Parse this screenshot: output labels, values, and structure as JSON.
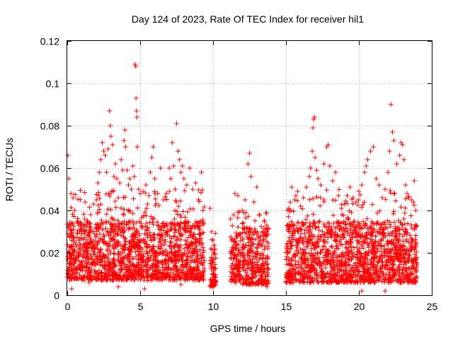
{
  "chart_data": {
    "type": "scatter",
    "title": "Day 124 of 2023, Rate Of TEC Index for receiver hil1",
    "xlabel": "GPS time / hours",
    "ylabel": "ROTI / TECUs",
    "xlim": [
      0,
      25
    ],
    "ylim": [
      0,
      0.12
    ],
    "x_ticks": [
      0,
      5,
      10,
      15,
      20,
      25
    ],
    "x_tick_labels": [
      "0",
      "5",
      "10",
      "15",
      "20",
      "25"
    ],
    "y_ticks": [
      0,
      0.02,
      0.04,
      0.06,
      0.08,
      0.1,
      0.12
    ],
    "y_tick_labels": [
      "0",
      "0.02",
      "0.04",
      "0.06",
      "0.08",
      "0.1",
      "0.12"
    ],
    "grid": true,
    "marker": "plus",
    "color": "#ff0000",
    "series": [
      {
        "name": "ROTI",
        "points": [
          [
            0.05,
            0.066
          ],
          [
            0.1,
            0.055
          ],
          [
            0.25,
            0.048
          ],
          [
            0.4,
            0.046
          ],
          [
            0.5,
            0.04
          ],
          [
            0.7,
            0.034
          ],
          [
            0.9,
            0.031
          ],
          [
            1.0,
            0.029
          ],
          [
            1.2,
            0.036
          ],
          [
            1.4,
            0.035
          ],
          [
            1.6,
            0.038
          ],
          [
            1.8,
            0.043
          ],
          [
            2.0,
            0.045
          ],
          [
            2.1,
            0.053
          ],
          [
            2.2,
            0.058
          ],
          [
            2.3,
            0.064
          ],
          [
            2.4,
            0.072
          ],
          [
            2.5,
            0.068
          ],
          [
            2.6,
            0.066
          ],
          [
            2.7,
            0.058
          ],
          [
            2.8,
            0.069
          ],
          [
            2.9,
            0.087
          ],
          [
            2.95,
            0.08
          ],
          [
            3.0,
            0.075
          ],
          [
            3.1,
            0.071
          ],
          [
            3.2,
            0.056
          ],
          [
            3.3,
            0.062
          ],
          [
            3.4,
            0.055
          ],
          [
            3.5,
            0.046
          ],
          [
            3.6,
            0.053
          ],
          [
            3.7,
            0.064
          ],
          [
            3.8,
            0.059
          ],
          [
            3.9,
            0.073
          ],
          [
            3.95,
            0.078
          ],
          [
            4.0,
            0.07
          ],
          [
            4.1,
            0.059
          ],
          [
            4.2,
            0.052
          ],
          [
            4.3,
            0.055
          ],
          [
            4.4,
            0.05
          ],
          [
            4.5,
            0.061
          ],
          [
            4.6,
            0.056
          ],
          [
            4.65,
            0.109
          ],
          [
            4.7,
            0.108
          ],
          [
            4.72,
            0.093
          ],
          [
            4.75,
            0.087
          ],
          [
            4.78,
            0.084
          ],
          [
            4.8,
            0.07
          ],
          [
            4.9,
            0.05
          ],
          [
            5.0,
            0.048
          ],
          [
            5.2,
            0.049
          ],
          [
            5.4,
            0.052
          ],
          [
            5.5,
            0.043
          ],
          [
            5.6,
            0.047
          ],
          [
            5.7,
            0.058
          ],
          [
            5.8,
            0.065
          ],
          [
            5.9,
            0.07
          ],
          [
            6.0,
            0.055
          ],
          [
            6.2,
            0.048
          ],
          [
            6.4,
            0.06
          ],
          [
            6.6,
            0.045
          ],
          [
            6.8,
            0.048
          ],
          [
            7.0,
            0.06
          ],
          [
            7.1,
            0.055
          ],
          [
            7.2,
            0.072
          ],
          [
            7.3,
            0.061
          ],
          [
            7.4,
            0.05
          ],
          [
            7.5,
            0.081
          ],
          [
            7.6,
            0.068
          ],
          [
            7.7,
            0.064
          ],
          [
            7.8,
            0.058
          ],
          [
            7.9,
            0.061
          ],
          [
            8.0,
            0.055
          ],
          [
            8.2,
            0.052
          ],
          [
            8.4,
            0.06
          ],
          [
            8.6,
            0.05
          ],
          [
            8.8,
            0.053
          ],
          [
            9.0,
            0.045
          ],
          [
            9.2,
            0.058
          ],
          [
            9.3,
            0.04
          ],
          [
            9.8,
            0.041
          ],
          [
            9.9,
            0.03
          ],
          [
            10.0,
            0.026
          ],
          [
            10.1,
            0.022
          ],
          [
            11.2,
            0.036
          ],
          [
            11.5,
            0.048
          ],
          [
            11.7,
            0.047
          ],
          [
            12.0,
            0.04
          ],
          [
            12.2,
            0.045
          ],
          [
            12.4,
            0.062
          ],
          [
            12.5,
            0.067
          ],
          [
            12.6,
            0.056
          ],
          [
            12.8,
            0.044
          ],
          [
            13.0,
            0.051
          ],
          [
            13.2,
            0.038
          ],
          [
            13.5,
            0.035
          ],
          [
            13.6,
            0.031
          ],
          [
            15.2,
            0.041
          ],
          [
            15.4,
            0.051
          ],
          [
            15.6,
            0.045
          ],
          [
            15.8,
            0.049
          ],
          [
            16.0,
            0.042
          ],
          [
            16.2,
            0.046
          ],
          [
            16.4,
            0.051
          ],
          [
            16.6,
            0.056
          ],
          [
            16.7,
            0.06
          ],
          [
            16.8,
            0.068
          ],
          [
            16.85,
            0.079
          ],
          [
            16.9,
            0.083
          ],
          [
            16.95,
            0.084
          ],
          [
            17.0,
            0.065
          ],
          [
            17.1,
            0.059
          ],
          [
            17.2,
            0.055
          ],
          [
            17.4,
            0.052
          ],
          [
            17.6,
            0.062
          ],
          [
            17.8,
            0.07
          ],
          [
            17.9,
            0.071
          ],
          [
            18.0,
            0.061
          ],
          [
            18.2,
            0.054
          ],
          [
            18.4,
            0.058
          ],
          [
            18.6,
            0.047
          ],
          [
            18.8,
            0.041
          ],
          [
            19.0,
            0.043
          ],
          [
            19.2,
            0.047
          ],
          [
            19.4,
            0.051
          ],
          [
            19.6,
            0.046
          ],
          [
            19.8,
            0.044
          ],
          [
            20.0,
            0.049
          ],
          [
            20.2,
            0.052
          ],
          [
            20.4,
            0.058
          ],
          [
            20.5,
            0.061
          ],
          [
            20.6,
            0.064
          ],
          [
            20.8,
            0.068
          ],
          [
            21.0,
            0.07
          ],
          [
            21.2,
            0.055
          ],
          [
            21.4,
            0.052
          ],
          [
            21.6,
            0.046
          ],
          [
            21.8,
            0.05
          ],
          [
            22.0,
            0.058
          ],
          [
            22.1,
            0.068
          ],
          [
            22.2,
            0.09
          ],
          [
            22.3,
            0.077
          ],
          [
            22.4,
            0.073
          ],
          [
            22.6,
            0.062
          ],
          [
            22.8,
            0.066
          ],
          [
            22.9,
            0.072
          ],
          [
            23.0,
            0.071
          ],
          [
            23.1,
            0.064
          ],
          [
            23.2,
            0.052
          ],
          [
            23.3,
            0.048
          ],
          [
            23.4,
            0.046
          ],
          [
            23.6,
            0.045
          ],
          [
            23.8,
            0.054
          ],
          [
            23.9,
            0.04
          ],
          [
            0.3,
            0.003
          ],
          [
            1.5,
            0.006
          ],
          [
            3.5,
            0.004
          ],
          [
            5.3,
            0.003
          ],
          [
            7.8,
            0.005
          ],
          [
            20.2,
            0.002
          ],
          [
            21.8,
            0.002
          ],
          [
            10.0,
            0.004
          ],
          [
            12.6,
            0.005
          ],
          [
            13.7,
            0.004
          ]
        ]
      }
    ],
    "dense_segments": [
      {
        "x_range": [
          0,
          9.4
        ],
        "y_floor": 0.007,
        "y_core": 0.035,
        "y_peak": 0.05
      },
      {
        "x_range": [
          9.8,
          10.2
        ],
        "y_floor": 0.004,
        "y_core": 0.022,
        "y_peak": 0.03
      },
      {
        "x_range": [
          11.2,
          11.9
        ],
        "y_floor": 0.006,
        "y_core": 0.03,
        "y_peak": 0.04
      },
      {
        "x_range": [
          12.0,
          13.8
        ],
        "y_floor": 0.005,
        "y_core": 0.032,
        "y_peak": 0.04
      },
      {
        "x_range": [
          15.0,
          24.0
        ],
        "y_floor": 0.006,
        "y_core": 0.035,
        "y_peak": 0.05
      }
    ]
  }
}
